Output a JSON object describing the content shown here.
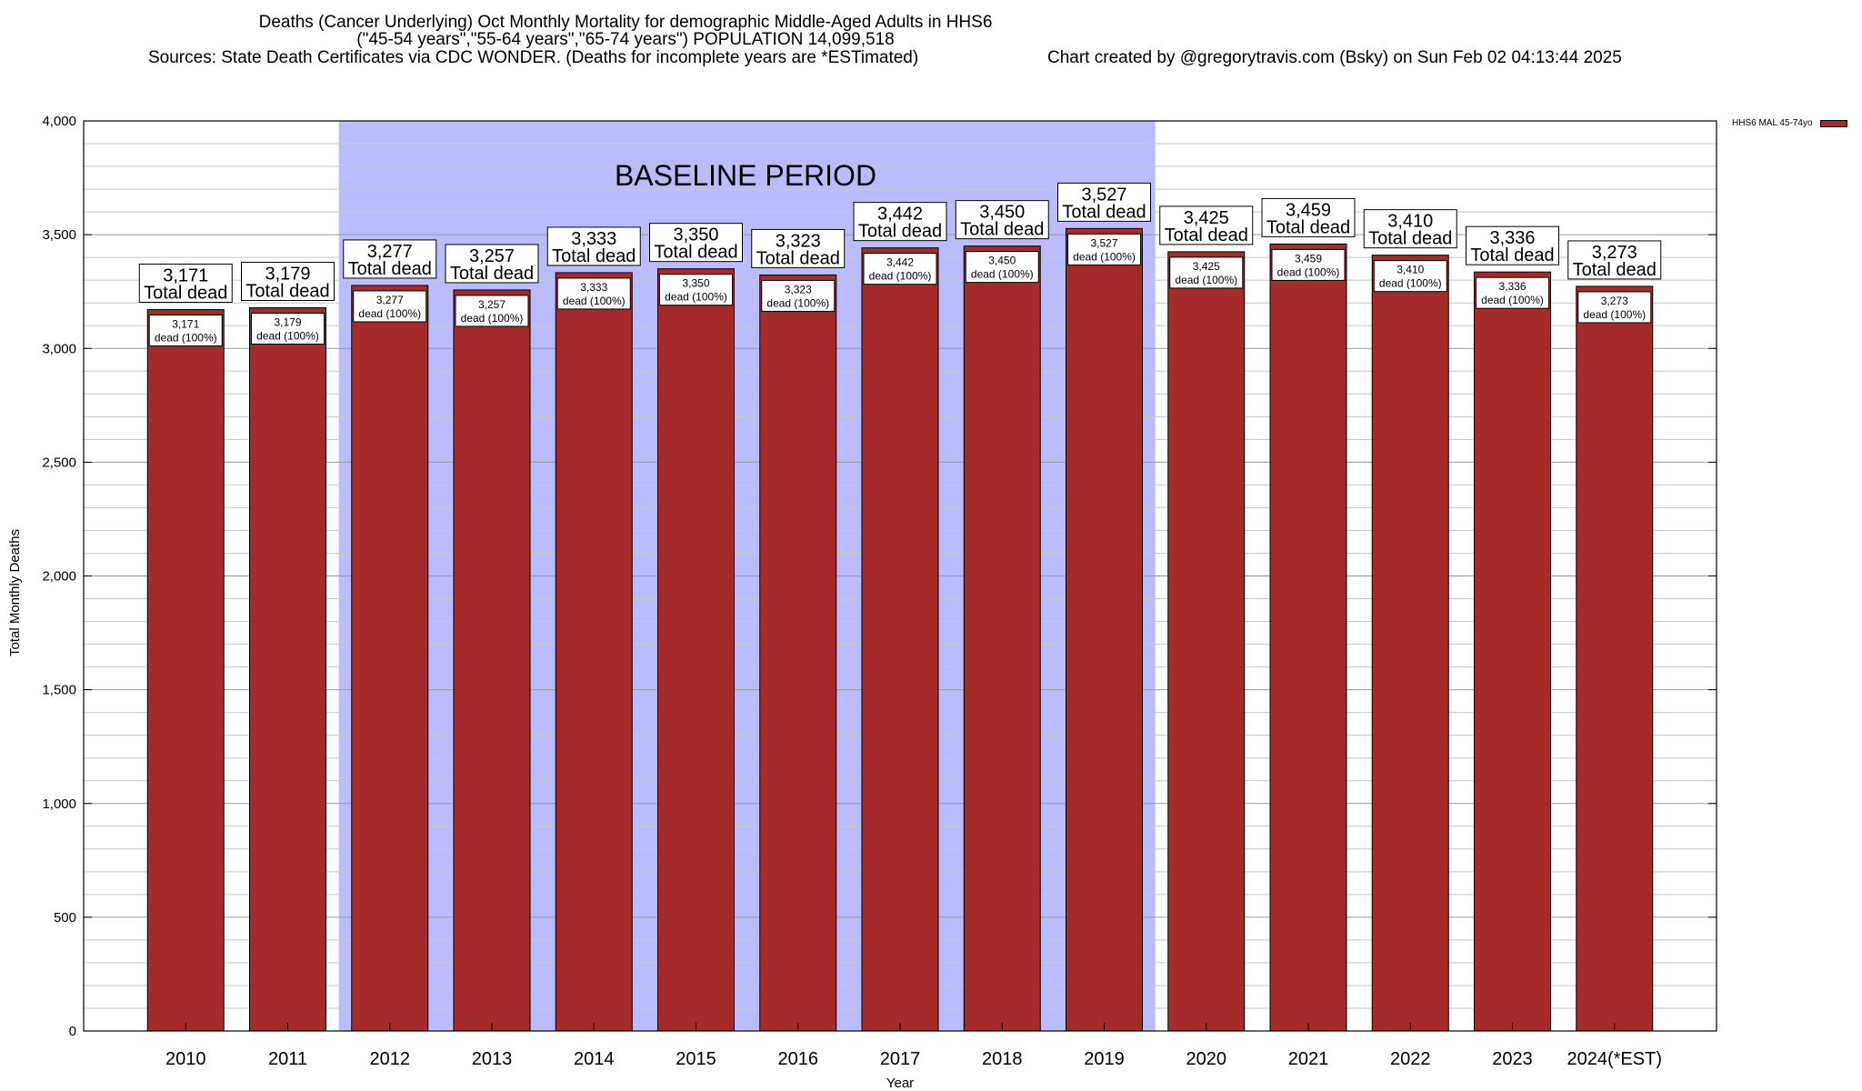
{
  "header": {
    "title_line1": "Deaths (Cancer Underlying) Oct Monthly Mortality for demographic Middle-Aged Adults in HHS6",
    "title_line2": "(\"45-54 years\",\"55-64 years\",\"65-74 years\") POPULATION 14,099,518",
    "sources": "Sources: State Death Certificates via CDC WONDER. (Deaths for incomplete years are *ESTimated)",
    "credit": "Chart created by @gregorytravis.com (Bsky) on Sun Feb 02 04:13:44 2025"
  },
  "chart_data": {
    "type": "bar",
    "xlabel": "Year",
    "ylabel": "Total Monthly Deaths",
    "ylim": [
      0,
      4000
    ],
    "yticks": [
      0,
      500,
      1000,
      1500,
      2000,
      2500,
      3000,
      3500,
      4000
    ],
    "ytick_labels": [
      "0",
      "500",
      "1,000",
      "1,500",
      "2,000",
      "2,500",
      "3,000",
      "3,500",
      "4,000"
    ],
    "categories": [
      "2010",
      "2011",
      "2012",
      "2013",
      "2014",
      "2015",
      "2016",
      "2017",
      "2018",
      "2019",
      "2020",
      "2021",
      "2022",
      "2023",
      "2024(*EST)"
    ],
    "series": [
      {
        "name": "HHS6 MAL 45-74yo",
        "color": "#a52a2a",
        "values": [
          3171,
          3179,
          3277,
          3257,
          3333,
          3350,
          3323,
          3442,
          3450,
          3527,
          3425,
          3459,
          3410,
          3336,
          3273
        ]
      }
    ],
    "total_labels": [
      "3,171",
      "3,179",
      "3,277",
      "3,257",
      "3,333",
      "3,350",
      "3,323",
      "3,442",
      "3,450",
      "3,527",
      "3,425",
      "3,459",
      "3,410",
      "3,336",
      "3,273"
    ],
    "total_suffix": "Total dead",
    "inner_label_suffix": "dead (100%)",
    "baseline": {
      "label": "BASELINE PERIOD",
      "start": "2012",
      "end": "2019",
      "color": "#bbbbff"
    },
    "grid": true,
    "legend_position": "top-right"
  }
}
